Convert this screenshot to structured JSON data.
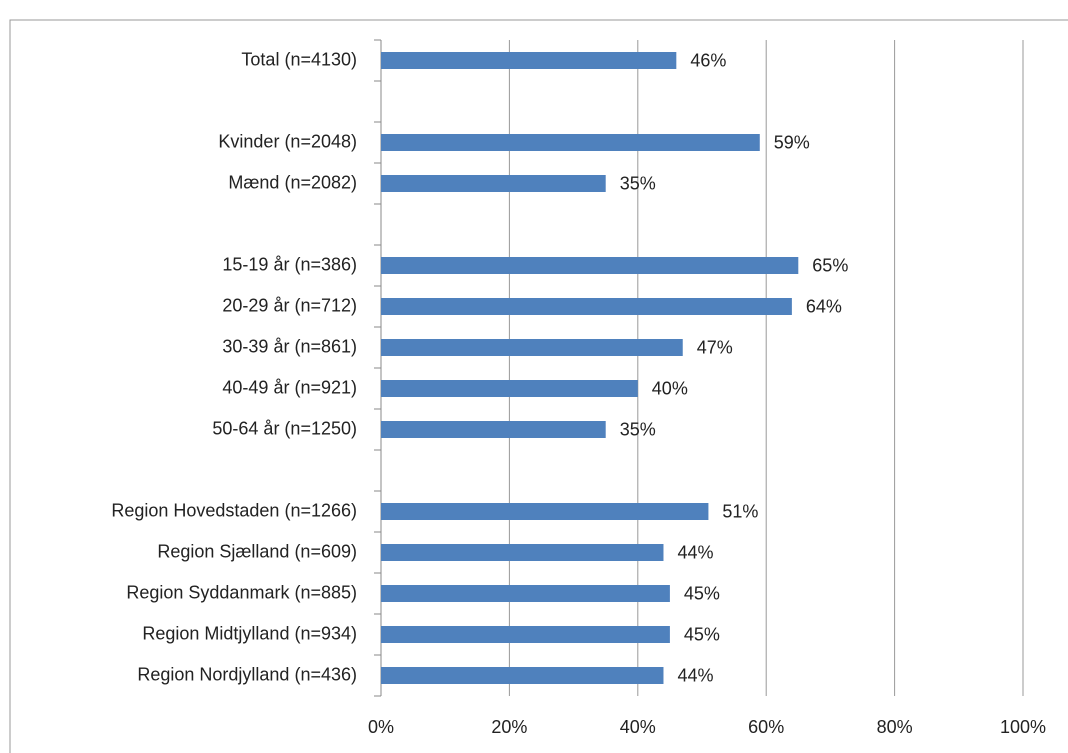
{
  "chart_data": {
    "type": "barh",
    "categories": [
      "Total (n=4130)",
      null,
      "Kvinder (n=2048)",
      "Mænd (n=2082)",
      null,
      "15-19 år (n=386)",
      "20-29 år (n=712)",
      "30-39 år (n=861)",
      "40-49 år (n=921)",
      "50-64 år (n=1250)",
      null,
      "Region Hovedstaden (n=1266)",
      "Region Sjælland (n=609)",
      "Region Syddanmark (n=885)",
      "Region Midtjylland (n=934)",
      "Region Nordjylland (n=436)"
    ],
    "values": [
      46,
      null,
      59,
      35,
      null,
      65,
      64,
      47,
      40,
      35,
      null,
      51,
      44,
      45,
      45,
      44
    ],
    "value_labels": [
      "46%",
      null,
      "59%",
      "35%",
      null,
      "65%",
      "64%",
      "47%",
      "40%",
      "35%",
      null,
      "51%",
      "44%",
      "45%",
      "45%",
      "44%"
    ],
    "color": "#4f81bd",
    "xlim": [
      0,
      100
    ],
    "xticks": [
      {
        "value": 0,
        "label": "0%"
      },
      {
        "value": 20,
        "label": "20%"
      },
      {
        "value": 40,
        "label": "40%"
      },
      {
        "value": 60,
        "label": "60%"
      },
      {
        "value": 80,
        "label": "80%"
      },
      {
        "value": 100,
        "label": "100%"
      }
    ],
    "grid": true
  }
}
